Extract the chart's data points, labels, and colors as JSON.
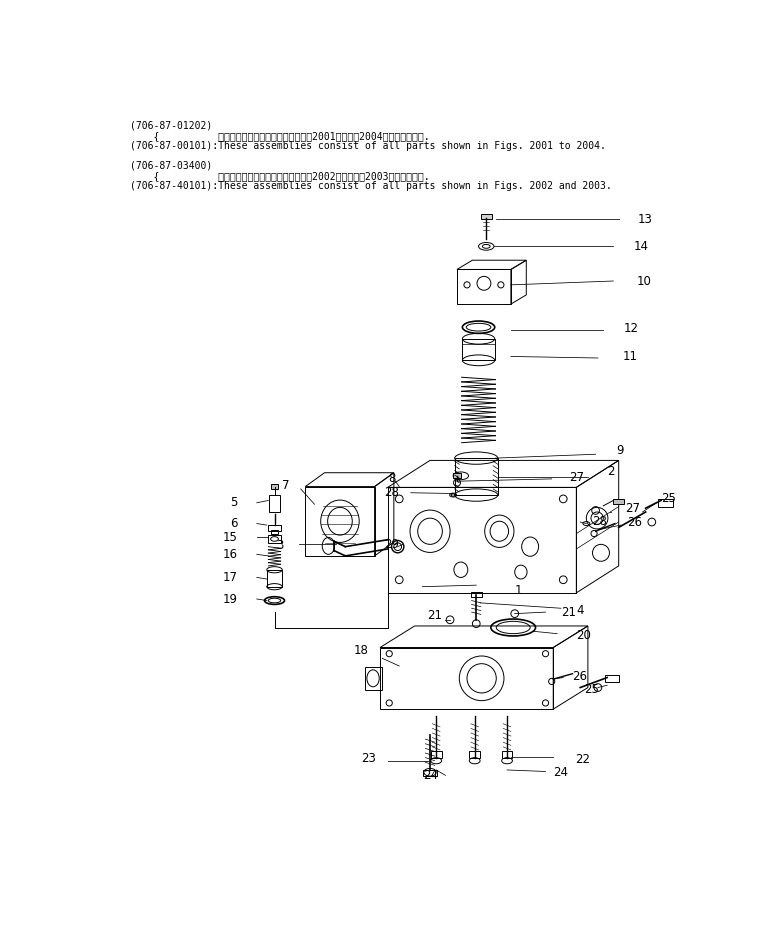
{
  "header_lines": [
    "(706-87-01202)",
    "    {          これらのアセンブリの構成部品は第2001図から第2004図まで含みます.",
    "(706-87-00101):These assemblies consist of all parts shown in Figs. 2001 to 2004.",
    "",
    "(706-87-03400)",
    "    {          これらのアセンブリの構成部品は第2002図および第2003図を含みます.",
    "(706-87-40101):These assemblies consist of all parts shown in Figs. 2002 and 2003."
  ],
  "bg_color": "#ffffff",
  "text_color": "#000000",
  "lw": 0.7
}
